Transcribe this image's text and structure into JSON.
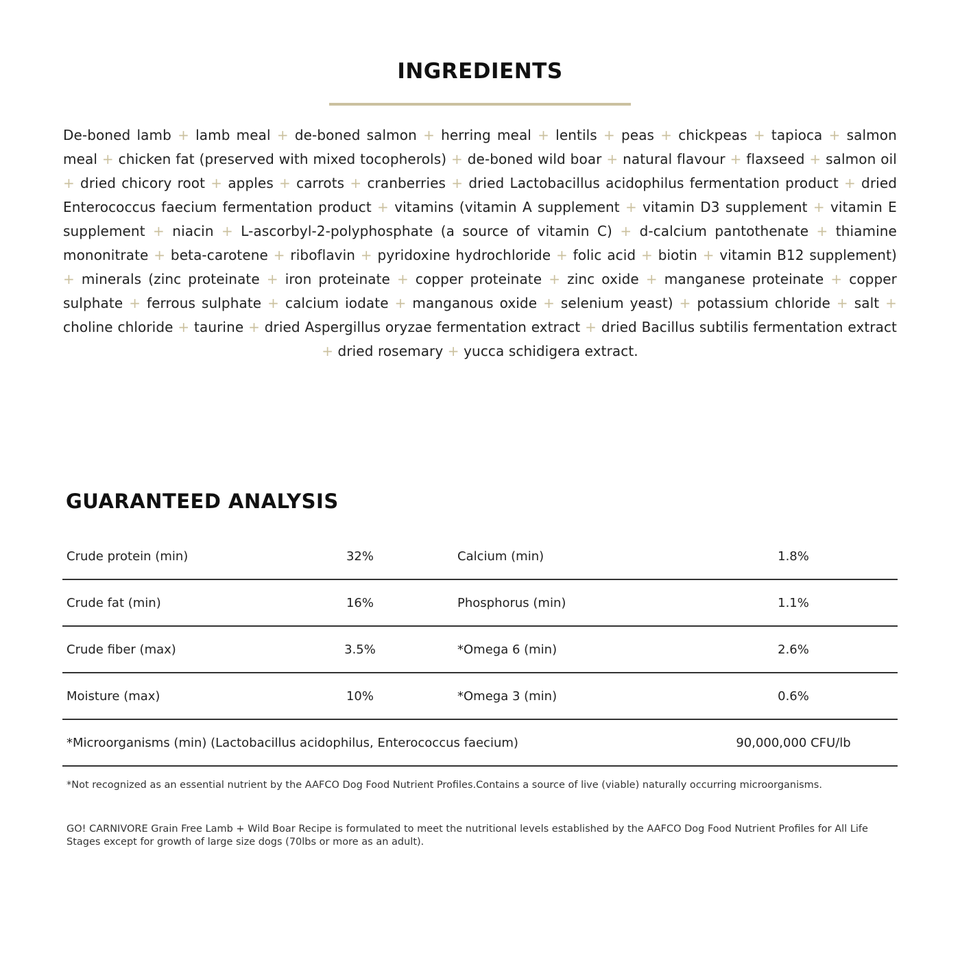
{
  "ingredients": {
    "title": "INGREDIENTS",
    "accent_color": "#cbc19f",
    "items": [
      "De-boned lamb",
      "lamb meal",
      "de-boned salmon",
      "herring meal",
      "lentils",
      "peas",
      "chickpeas",
      "tapioca",
      "salmon meal",
      "chicken fat (preserved with mixed tocopherols)",
      "de-boned wild boar",
      "natural flavour",
      "flaxseed",
      "salmon oil",
      "dried chicory root",
      "apples",
      "carrots",
      "cranberries",
      "dried Lactobacillus acidophilus fermentation product",
      "dried Enterococcus faecium fermentation product",
      "vitamins (vitamin A supplement",
      "vitamin D3 supplement",
      "vitamin E supplement",
      "niacin",
      "L-ascorbyl-2-polyphosphate (a source of vitamin C)",
      "d-calcium pantothenate",
      "thiamine mononitrate",
      "beta-carotene",
      "riboflavin",
      "pyridoxine hydrochloride",
      "folic acid",
      "biotin",
      "vitamin B12 supplement)",
      "minerals (zinc proteinate",
      "iron proteinate",
      "copper proteinate",
      "zinc oxide",
      "manganese proteinate",
      "copper sulphate",
      "ferrous sulphate",
      "calcium iodate",
      "manganous oxide",
      "selenium yeast)",
      "potassium chloride",
      "salt",
      "choline chloride",
      "taurine",
      "dried Aspergillus oryzae fermentation extract",
      "dried Bacillus subtilis fermentation extract",
      "dried rosemary",
      "yucca schidigera extract."
    ],
    "separator": "+"
  },
  "analysis": {
    "title": "GUARANTEED ANALYSIS",
    "rows": [
      {
        "label1": "Crude protein (min)",
        "value1": "32%",
        "label2": "Calcium (min)",
        "value2": "1.8%"
      },
      {
        "label1": "Crude fat (min)",
        "value1": "16%",
        "label2": "Phosphorus (min)",
        "value2": "1.1%"
      },
      {
        "label1": "Crude fiber (max)",
        "value1": "3.5%",
        "label2": "*Omega 6 (min)",
        "value2": "2.6%"
      },
      {
        "label1": "Moisture (max)",
        "value1": "10%",
        "label2": "*Omega 3 (min)",
        "value2": "0.6%"
      },
      {
        "label1": "*Microorganisms (min) (Lactobacillus acidophilus, Enterococcus faecium)",
        "value1": "",
        "label2": "",
        "value2": "90,000,000 CFU/lb"
      }
    ],
    "footnote": "*Not recognized as an essential nutrient by the AAFCO Dog Food Nutrient Profiles.Contains a source of live (viable) naturally occurring microorganisms.",
    "statement": "GO! CARNIVORE Grain Free Lamb + Wild Boar Recipe is formulated to meet the nutritional levels established by the AAFCO Dog Food Nutrient Profiles for All Life Stages except for growth of large size dogs (70lbs or more as an adult)."
  }
}
